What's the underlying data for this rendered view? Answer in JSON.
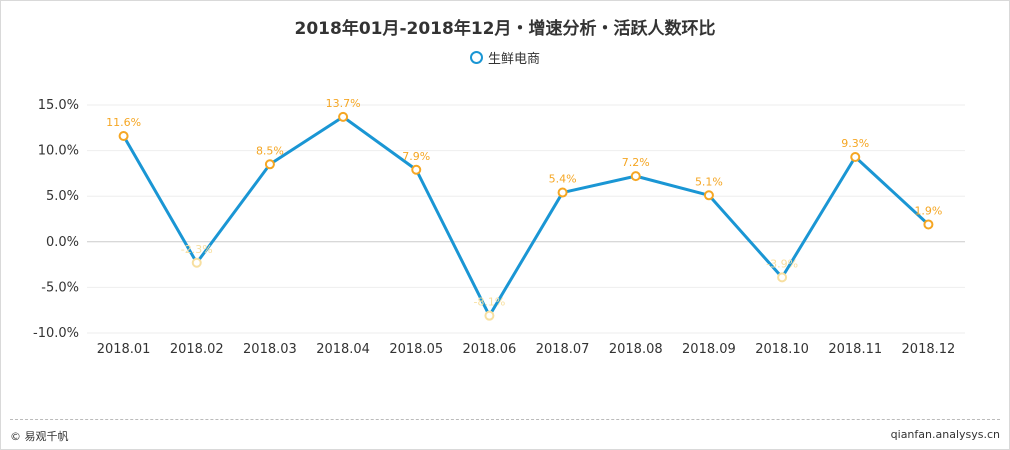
{
  "chart_data": {
    "type": "line",
    "title": "2018年01月-2018年12月・增速分析・活跃人数环比",
    "categories": [
      "2018.01",
      "2018.02",
      "2018.03",
      "2018.04",
      "2018.05",
      "2018.06",
      "2018.07",
      "2018.08",
      "2018.09",
      "2018.10",
      "2018.11",
      "2018.12"
    ],
    "series": [
      {
        "name": "生鲜电商",
        "values": [
          11.6,
          -2.3,
          8.5,
          13.7,
          7.9,
          -8.1,
          5.4,
          7.2,
          5.1,
          -3.9,
          9.3,
          1.9
        ],
        "labels": [
          "11.6%",
          "-2.3%",
          "8.5%",
          "13.7%",
          "7.9%",
          "-8.1%",
          "5.4%",
          "7.2%",
          "5.1%",
          "-3.9%",
          "9.3%",
          "1.9%"
        ]
      }
    ],
    "ylim": [
      -10,
      15
    ],
    "yticks": [
      15,
      10,
      5,
      0,
      -5,
      -10
    ],
    "ytick_labels": [
      "15.0%",
      "10.0%",
      "5.0%",
      "0.0%",
      "-5.0%",
      "-10.0%"
    ],
    "legend": "top-center",
    "grid": true
  },
  "colors": {
    "line": "#1a96d4",
    "marker": "#f5a623",
    "label": "#f5a623",
    "negative": "#f7dfa0"
  },
  "footer": {
    "left": "© 易观千帆",
    "right": "qianfan.analysys.cn"
  }
}
